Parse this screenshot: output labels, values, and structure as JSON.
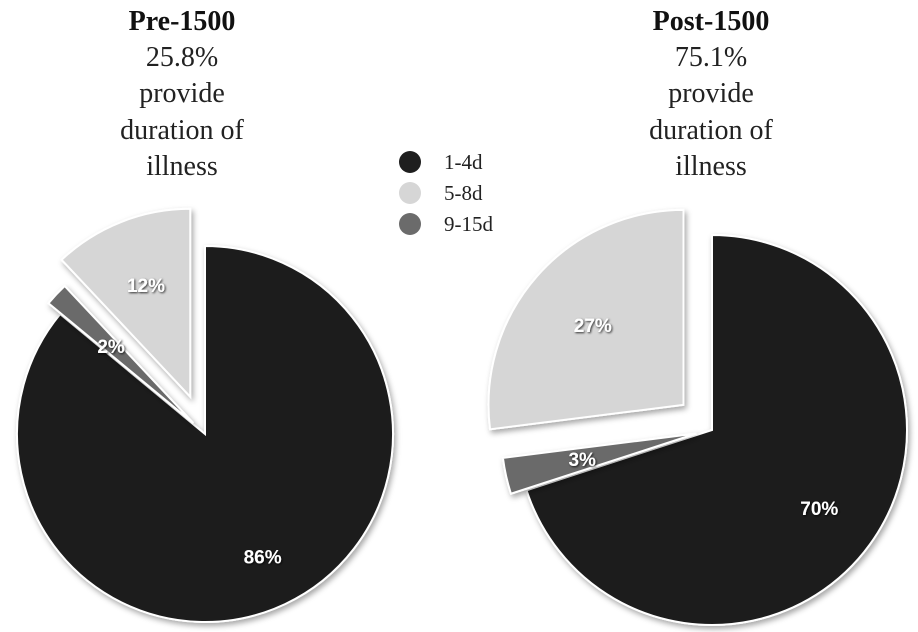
{
  "colors": {
    "d1_4": "#1e1e1e",
    "d5_8": "#d6d6d6",
    "d9_15": "#6b6b6b"
  },
  "legend": {
    "items": [
      {
        "label": "1-4d",
        "color": "#1e1e1e"
      },
      {
        "label": "5-8d",
        "color": "#d6d6d6"
      },
      {
        "label": "9-15d",
        "color": "#6b6b6b"
      }
    ]
  },
  "chart_data": [
    {
      "type": "pie",
      "title": "Pre-1500",
      "subtitle_lines": [
        "25.8%",
        "provide",
        "duration of",
        "illness"
      ],
      "slices": [
        {
          "category": "1-4d",
          "value": 86,
          "label": "86%"
        },
        {
          "category": "9-15d",
          "value": 2,
          "label": "2%"
        },
        {
          "category": "5-8d",
          "value": 12,
          "label": "12%"
        }
      ]
    },
    {
      "type": "pie",
      "title": "Post-1500",
      "subtitle_lines": [
        "75.1%",
        "provide",
        "duration of",
        "illness"
      ],
      "slices": [
        {
          "category": "1-4d",
          "value": 70,
          "label": "70%"
        },
        {
          "category": "9-15d",
          "value": 3,
          "label": "3%"
        },
        {
          "category": "5-8d",
          "value": 27,
          "label": "27%"
        }
      ]
    }
  ]
}
